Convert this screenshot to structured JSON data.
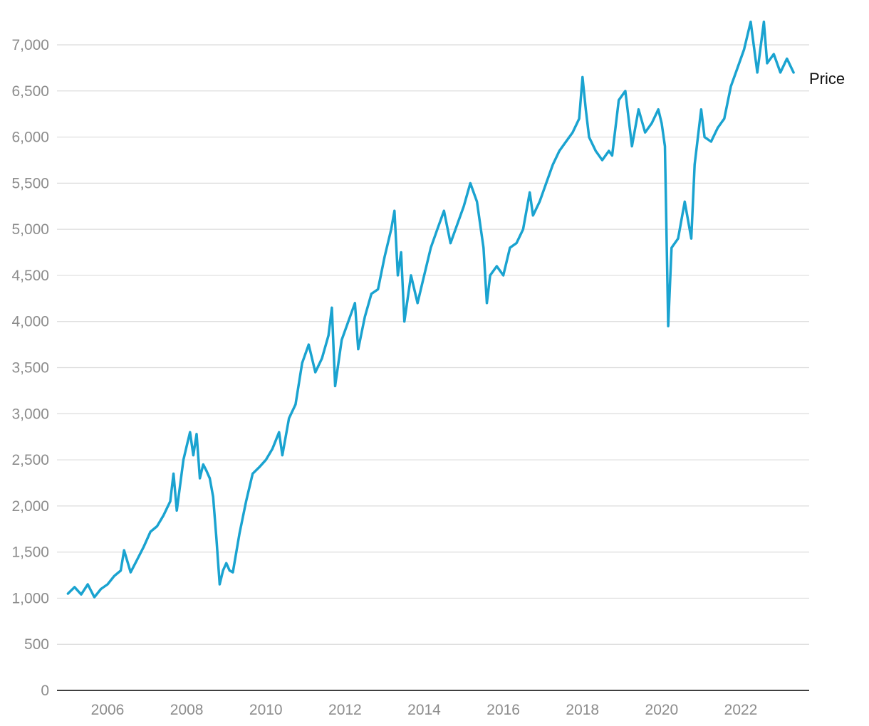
{
  "colors": {
    "line": "#1aa3d0",
    "grid": "#dcdcdc",
    "axis": "#000000",
    "tick_text": "#8c8c8c",
    "label_text": "#111111"
  },
  "chart_data": {
    "type": "line",
    "title": "",
    "xlabel": "",
    "ylabel": "",
    "grid": "horizontal",
    "ylim": [
      0,
      7000
    ],
    "xlim": [
      "2005-01",
      "2023-05"
    ],
    "y_ticks": [
      {
        "value": 0,
        "label": "0"
      },
      {
        "value": 500,
        "label": "500"
      },
      {
        "value": 1000,
        "label": "1,000"
      },
      {
        "value": 1500,
        "label": "1,500"
      },
      {
        "value": 2000,
        "label": "2,000"
      },
      {
        "value": 2500,
        "label": "2,500"
      },
      {
        "value": 3000,
        "label": "3,000"
      },
      {
        "value": 3500,
        "label": "3,500"
      },
      {
        "value": 4000,
        "label": "4,000"
      },
      {
        "value": 4500,
        "label": "4,500"
      },
      {
        "value": 5000,
        "label": "5,000"
      },
      {
        "value": 5500,
        "label": "5,500"
      },
      {
        "value": 6000,
        "label": "6,000"
      },
      {
        "value": 6500,
        "label": "6,500"
      },
      {
        "value": 7000,
        "label": "7,000"
      }
    ],
    "x_ticks": [
      {
        "value": "2006-01",
        "label": "2006"
      },
      {
        "value": "2008-01",
        "label": "2008"
      },
      {
        "value": "2010-01",
        "label": "2010"
      },
      {
        "value": "2012-01",
        "label": "2012"
      },
      {
        "value": "2014-01",
        "label": "2014"
      },
      {
        "value": "2016-01",
        "label": "2016"
      },
      {
        "value": "2018-01",
        "label": "2018"
      },
      {
        "value": "2020-01",
        "label": "2020"
      },
      {
        "value": "2022-01",
        "label": "2022"
      }
    ],
    "series": [
      {
        "name": "Price",
        "points": [
          [
            "2005-01",
            1050
          ],
          [
            "2005-03",
            1120
          ],
          [
            "2005-05",
            1040
          ],
          [
            "2005-07",
            1150
          ],
          [
            "2005-09",
            1010
          ],
          [
            "2005-11",
            1100
          ],
          [
            "2006-01",
            1150
          ],
          [
            "2006-03",
            1240
          ],
          [
            "2006-05",
            1300
          ],
          [
            "2006-06",
            1520
          ],
          [
            "2006-08",
            1280
          ],
          [
            "2006-10",
            1420
          ],
          [
            "2006-12",
            1560
          ],
          [
            "2007-02",
            1720
          ],
          [
            "2007-04",
            1780
          ],
          [
            "2007-06",
            1900
          ],
          [
            "2007-08",
            2050
          ],
          [
            "2007-09",
            2350
          ],
          [
            "2007-10",
            1950
          ],
          [
            "2007-12",
            2500
          ],
          [
            "2008-01",
            2650
          ],
          [
            "2008-02",
            2800
          ],
          [
            "2008-03",
            2550
          ],
          [
            "2008-04",
            2780
          ],
          [
            "2008-05",
            2300
          ],
          [
            "2008-06",
            2450
          ],
          [
            "2008-07",
            2380
          ],
          [
            "2008-08",
            2300
          ],
          [
            "2008-09",
            2100
          ],
          [
            "2008-10",
            1650
          ],
          [
            "2008-11",
            1150
          ],
          [
            "2008-12",
            1300
          ],
          [
            "2009-01",
            1380
          ],
          [
            "2009-02",
            1300
          ],
          [
            "2009-03",
            1280
          ],
          [
            "2009-05",
            1700
          ],
          [
            "2009-07",
            2050
          ],
          [
            "2009-09",
            2350
          ],
          [
            "2009-11",
            2420
          ],
          [
            "2010-01",
            2500
          ],
          [
            "2010-03",
            2620
          ],
          [
            "2010-05",
            2800
          ],
          [
            "2010-06",
            2550
          ],
          [
            "2010-08",
            2950
          ],
          [
            "2010-10",
            3100
          ],
          [
            "2010-12",
            3550
          ],
          [
            "2011-02",
            3750
          ],
          [
            "2011-04",
            3450
          ],
          [
            "2011-06",
            3600
          ],
          [
            "2011-08",
            3850
          ],
          [
            "2011-09",
            4150
          ],
          [
            "2011-10",
            3300
          ],
          [
            "2011-12",
            3800
          ],
          [
            "2012-02",
            4000
          ],
          [
            "2012-04",
            4200
          ],
          [
            "2012-05",
            3700
          ],
          [
            "2012-07",
            4050
          ],
          [
            "2012-09",
            4300
          ],
          [
            "2012-11",
            4350
          ],
          [
            "2013-01",
            4700
          ],
          [
            "2013-03",
            5000
          ],
          [
            "2013-04",
            5200
          ],
          [
            "2013-05",
            4500
          ],
          [
            "2013-06",
            4750
          ],
          [
            "2013-07",
            4000
          ],
          [
            "2013-09",
            4500
          ],
          [
            "2013-11",
            4200
          ],
          [
            "2014-01",
            4500
          ],
          [
            "2014-03",
            4800
          ],
          [
            "2014-05",
            5000
          ],
          [
            "2014-07",
            5200
          ],
          [
            "2014-09",
            4850
          ],
          [
            "2014-11",
            5050
          ],
          [
            "2015-01",
            5250
          ],
          [
            "2015-03",
            5500
          ],
          [
            "2015-05",
            5300
          ],
          [
            "2015-07",
            4800
          ],
          [
            "2015-08",
            4200
          ],
          [
            "2015-09",
            4500
          ],
          [
            "2015-11",
            4600
          ],
          [
            "2016-01",
            4500
          ],
          [
            "2016-03",
            4800
          ],
          [
            "2016-05",
            4850
          ],
          [
            "2016-07",
            5000
          ],
          [
            "2016-09",
            5400
          ],
          [
            "2016-10",
            5150
          ],
          [
            "2016-12",
            5300
          ],
          [
            "2017-02",
            5500
          ],
          [
            "2017-04",
            5700
          ],
          [
            "2017-06",
            5850
          ],
          [
            "2017-08",
            5950
          ],
          [
            "2017-10",
            6050
          ],
          [
            "2017-12",
            6200
          ],
          [
            "2018-01",
            6650
          ],
          [
            "2018-02",
            6300
          ],
          [
            "2018-03",
            6000
          ],
          [
            "2018-05",
            5850
          ],
          [
            "2018-07",
            5750
          ],
          [
            "2018-09",
            5850
          ],
          [
            "2018-10",
            5800
          ],
          [
            "2018-12",
            6400
          ],
          [
            "2019-02",
            6500
          ],
          [
            "2019-04",
            5900
          ],
          [
            "2019-06",
            6300
          ],
          [
            "2019-08",
            6050
          ],
          [
            "2019-10",
            6150
          ],
          [
            "2019-12",
            6300
          ],
          [
            "2020-01",
            6150
          ],
          [
            "2020-02",
            5900
          ],
          [
            "2020-03",
            3950
          ],
          [
            "2020-04",
            4800
          ],
          [
            "2020-06",
            4900
          ],
          [
            "2020-08",
            5300
          ],
          [
            "2020-10",
            4900
          ],
          [
            "2020-11",
            5700
          ],
          [
            "2021-01",
            6300
          ],
          [
            "2021-02",
            6000
          ],
          [
            "2021-04",
            5950
          ],
          [
            "2021-06",
            6100
          ],
          [
            "2021-08",
            6200
          ],
          [
            "2021-10",
            6550
          ],
          [
            "2021-12",
            6750
          ],
          [
            "2022-02",
            6950
          ],
          [
            "2022-04",
            7250
          ],
          [
            "2022-06",
            6700
          ],
          [
            "2022-08",
            7250
          ],
          [
            "2022-09",
            6800
          ],
          [
            "2022-11",
            6900
          ],
          [
            "2023-01",
            6700
          ],
          [
            "2023-03",
            6850
          ],
          [
            "2023-05",
            6700
          ]
        ]
      }
    ]
  }
}
